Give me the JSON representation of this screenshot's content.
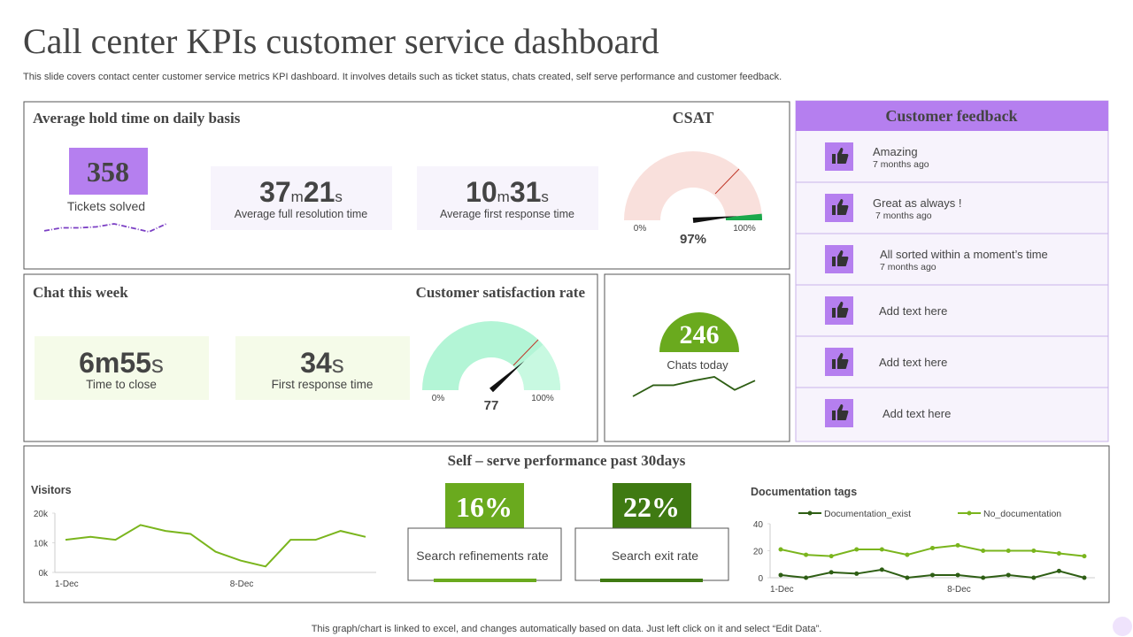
{
  "header": {
    "title": "Call center KPIs customer service dashboard",
    "subtitle": "This slide covers contact center customer service metrics KPI dashboard. It involves details such as ticket status, chats created, self serve performance and customer feedback."
  },
  "hold_time": {
    "title": "Average hold time on daily basis",
    "tickets": {
      "value": "358",
      "label": "Tickets solved",
      "trend": {
        "type": "line",
        "values": [
          1,
          4,
          4,
          5,
          8,
          4,
          0,
          8
        ]
      }
    },
    "full_resolution": {
      "minutes": "37",
      "minute_unit": "m",
      "seconds": "21",
      "second_unit": "s",
      "label": "Average  full resolution time"
    },
    "first_response": {
      "minutes": "10",
      "minute_unit": "m",
      "seconds": "31",
      "second_unit": "s",
      "label": "Average  first response time"
    }
  },
  "csat": {
    "type": "gauge",
    "title": "CSAT",
    "value": 97,
    "value_label": "97%",
    "min": {
      "value": 0,
      "label": "0%"
    },
    "max": {
      "value": 100,
      "label": "100%"
    }
  },
  "chat_week": {
    "title": "Chat this week",
    "time_to_close": {
      "value": "6m55",
      "unit": "s",
      "label": "Time to close"
    },
    "first_response": {
      "value": "34",
      "unit": "s",
      "label": "First response time"
    }
  },
  "satisfaction": {
    "type": "gauge",
    "title": "Customer satisfaction rate",
    "value": 77,
    "min": {
      "value": 0,
      "label": "0%"
    },
    "max": {
      "value": 100,
      "label": "100%"
    }
  },
  "chats_today": {
    "value": "246",
    "label": "Chats today",
    "trend": {
      "type": "line",
      "values": [
        0,
        12,
        12,
        17,
        21,
        7,
        17
      ]
    }
  },
  "feedback": {
    "title": "Customer feedback",
    "items": [
      {
        "text": "Amazing",
        "time": "7 months ago"
      },
      {
        "text": "Great as always !",
        "time": "7 months ago"
      },
      {
        "text": "All sorted within a moment’s time",
        "time": "7 months ago"
      },
      {
        "text": "Add text here"
      },
      {
        "text": "Add text here"
      },
      {
        "text": "Add text here"
      }
    ]
  },
  "self_serve": {
    "title": "Self – serve performance past 30days",
    "visitors": {
      "type": "line",
      "title": "Visitors",
      "categories": [
        "1-Dec",
        null,
        null,
        null,
        null,
        null,
        null,
        "8-Dec",
        null,
        null,
        null,
        null,
        null
      ],
      "values": [
        11000,
        12000,
        11000,
        16000,
        14000,
        13000,
        7000,
        4000,
        2000,
        11000,
        11000,
        14000,
        12000
      ],
      "color": "#7ab51d",
      "ylim": [
        0,
        20000
      ],
      "yticks": [
        {
          "value": 0,
          "label": "0k"
        },
        {
          "value": 10000,
          "label": "10k"
        },
        {
          "value": 20000,
          "label": "20k"
        }
      ]
    },
    "refinements": {
      "value": "16%",
      "label": "Search refinements rate"
    },
    "exit": {
      "value": "22%",
      "label": "Search exit rate"
    },
    "documentation": {
      "type": "line",
      "title": "Documentation tags",
      "categories": [
        "1-Dec",
        null,
        null,
        null,
        null,
        null,
        null,
        "8-Dec",
        null,
        null,
        null,
        null,
        null
      ],
      "series": [
        {
          "name": "Documentation_exist",
          "color": "#2e5e14",
          "values": [
            2,
            0,
            4,
            3,
            6,
            0,
            2,
            2,
            0,
            2,
            0,
            5,
            0
          ]
        },
        {
          "name": "No_documentation",
          "color": "#7ab51d",
          "values": [
            21,
            17,
            16,
            21,
            21,
            17,
            22,
            24,
            20,
            20,
            20,
            18,
            16
          ]
        }
      ],
      "ylim": [
        0,
        40
      ],
      "yticks": [
        0,
        20,
        40
      ]
    }
  },
  "footer": "This graph/chart is linked to excel, and changes automatically based on data. Just left click on it and select “Edit Data”."
}
